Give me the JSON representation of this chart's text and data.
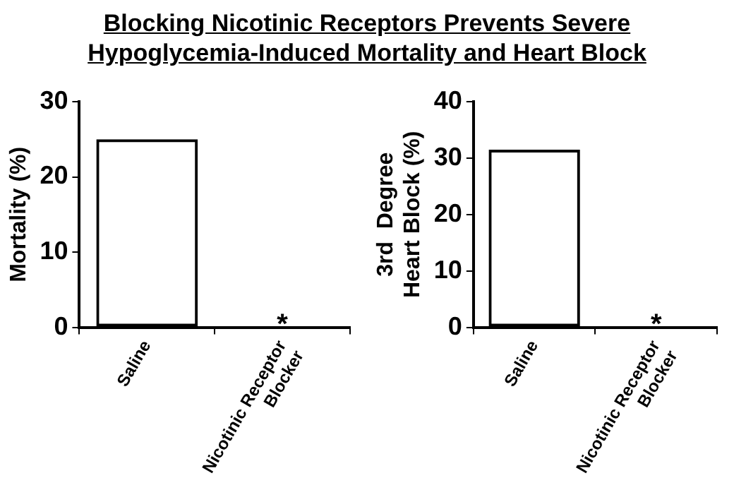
{
  "chart_data": [
    {
      "type": "bar",
      "title": "Blocking Nicotinic Receptors Prevents Severe Hypoglycemia-Induced Mortality and Heart Block",
      "categories": [
        "Saline",
        "Nicotinic Receptor Blocker"
      ],
      "values": [
        25,
        0
      ],
      "color": "#000000",
      "ylabel": "Mortality (%)",
      "ylim": [
        0,
        30
      ],
      "yticks": [
        0,
        10,
        20,
        30
      ],
      "grid": false,
      "legend": false,
      "annotations": [
        {
          "text": "*",
          "x": "Nicotinic Receptor Blocker",
          "y": 0
        }
      ]
    },
    {
      "type": "bar",
      "categories": [
        "Saline",
        "Nicotinic Receptor Blocker"
      ],
      "values": [
        31.5,
        0
      ],
      "color": "#000000",
      "ylabel": "3rd  Degree Heart Block (%)",
      "ylim": [
        0,
        40
      ],
      "yticks": [
        0,
        10,
        20,
        30,
        40
      ],
      "grid": false,
      "legend": false,
      "annotations": [
        {
          "text": "*",
          "x": "Nicotinic Receptor Blocker",
          "y": 0
        }
      ]
    }
  ]
}
